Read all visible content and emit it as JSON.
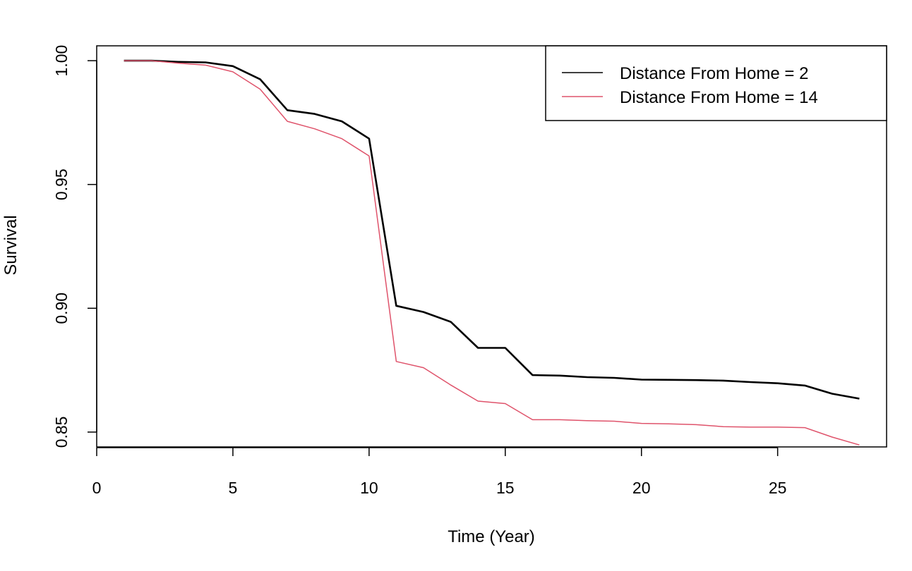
{
  "chart_data": {
    "type": "line",
    "xlabel": "Time (Year)",
    "ylabel": "Survival",
    "xlim": [
      0,
      29
    ],
    "ylim": [
      0.844,
      1.006
    ],
    "xticks": [
      0,
      5,
      10,
      15,
      20,
      25
    ],
    "xtick_labels": [
      "0",
      "5",
      "10",
      "15",
      "20",
      "25"
    ],
    "yticks": [
      0.85,
      0.9,
      0.95,
      1.0
    ],
    "ytick_labels": [
      "0.85",
      "0.90",
      "0.95",
      "1.00"
    ],
    "grid": false,
    "legend_position": "top-right",
    "series": [
      {
        "name": "Distance From Home = 2",
        "color": "#000000",
        "x": [
          1,
          2,
          3,
          4,
          5,
          6,
          7,
          8,
          9,
          10,
          11,
          12,
          13,
          14,
          15,
          16,
          17,
          18,
          19,
          20,
          21,
          22,
          23,
          24,
          25,
          26,
          27,
          28
        ],
        "y": [
          1.0,
          1.0,
          0.9995,
          0.9993,
          0.9978,
          0.9925,
          0.98,
          0.9785,
          0.9755,
          0.9685,
          0.901,
          0.8985,
          0.8945,
          0.884,
          0.884,
          0.873,
          0.8728,
          0.8722,
          0.8719,
          0.8712,
          0.8711,
          0.871,
          0.8708,
          0.8702,
          0.8697,
          0.8688,
          0.8655,
          0.8635
        ]
      },
      {
        "name": "Distance From Home = 14",
        "color": "#df536b",
        "x": [
          1,
          2,
          3,
          4,
          5,
          6,
          7,
          8,
          9,
          10,
          11,
          12,
          13,
          14,
          15,
          16,
          17,
          18,
          19,
          20,
          21,
          22,
          23,
          24,
          25,
          26,
          27,
          28
        ],
        "y": [
          1.0,
          1.0,
          0.999,
          0.9982,
          0.9955,
          0.9885,
          0.9755,
          0.9725,
          0.9685,
          0.9615,
          0.8785,
          0.876,
          0.869,
          0.8625,
          0.8615,
          0.855,
          0.855,
          0.8546,
          0.8544,
          0.8535,
          0.8533,
          0.853,
          0.8522,
          0.852,
          0.852,
          0.8518,
          0.848,
          0.8448
        ]
      }
    ]
  }
}
